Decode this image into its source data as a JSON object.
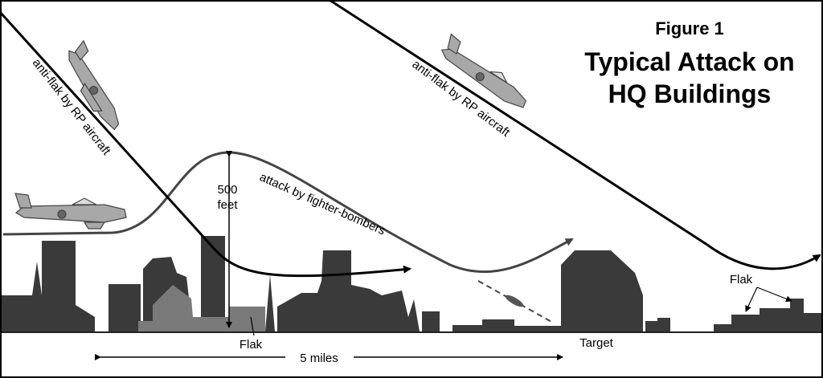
{
  "figure": {
    "label": "Figure 1",
    "title_lines": [
      "Typical Attack on",
      "HQ Buildings"
    ]
  },
  "paths": [
    {
      "label": "anti-flak by RP aircraft"
    },
    {
      "label": "anti-flak by RP aircraft"
    },
    {
      "label": "attack by fighter-bombers"
    }
  ],
  "annotations": {
    "height": [
      "500",
      "feet"
    ],
    "flak_left": "Flak",
    "flak_right": "Flak",
    "target": "Target",
    "distance": "5 miles"
  }
}
